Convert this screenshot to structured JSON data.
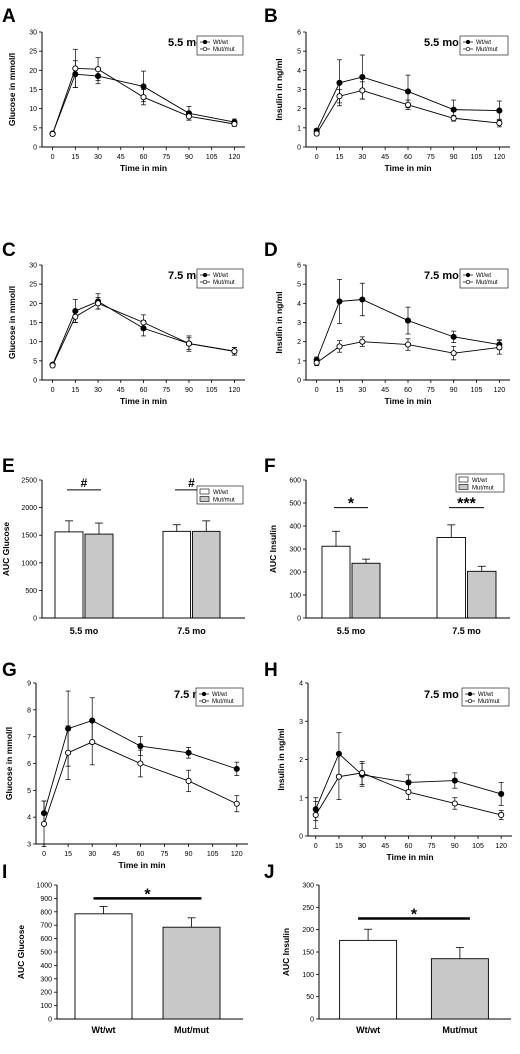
{
  "colors": {
    "wt_fill": "#ffffff",
    "mut_fill": "#c8c8c8",
    "ink": "#000000"
  },
  "charts": [
    {
      "id": "A",
      "letter": "A",
      "type": "line",
      "tag": "5.5 mo",
      "xlabel": "Time in min",
      "ylabel": "Glucose in mmol/l",
      "xlim": [
        -7,
        127
      ],
      "xticks": [
        0,
        15,
        30,
        45,
        60,
        75,
        90,
        105,
        120
      ],
      "ylim": [
        0,
        30
      ],
      "yticks": [
        0,
        5,
        10,
        15,
        20,
        25,
        30
      ],
      "legend": [
        "Wt/wt",
        "Mut/mut"
      ],
      "x": [
        0,
        15,
        30,
        60,
        90,
        120
      ],
      "series": [
        {
          "name": "Wt/wt",
          "marker": "filled",
          "values": [
            3.5,
            19.0,
            18.5,
            15.8,
            8.8,
            6.5
          ],
          "err": [
            0.4,
            3.5,
            2.0,
            4.0,
            1.8,
            0.8
          ]
        },
        {
          "name": "Mut/mut",
          "marker": "open",
          "values": [
            3.4,
            20.5,
            20.3,
            13.0,
            8.0,
            6.0
          ],
          "err": [
            0.4,
            5.0,
            3.0,
            2.0,
            1.0,
            0.6
          ]
        }
      ]
    },
    {
      "id": "B",
      "letter": "B",
      "type": "line",
      "tag": "5.5 mo",
      "xlabel": "Time in min",
      "ylabel": "Insulin in ng/ml",
      "xlim": [
        -7,
        127
      ],
      "xticks": [
        0,
        15,
        30,
        45,
        60,
        75,
        90,
        105,
        120
      ],
      "ylim": [
        0,
        6
      ],
      "yticks": [
        0,
        1,
        2,
        3,
        4,
        5,
        6
      ],
      "legend": [
        "Wt/wt",
        "Mut/mut"
      ],
      "x": [
        0,
        15,
        30,
        60,
        90,
        120
      ],
      "series": [
        {
          "name": "Wt/wt",
          "marker": "filled",
          "values": [
            0.85,
            3.35,
            3.65,
            2.9,
            1.95,
            1.9
          ],
          "err": [
            0.1,
            1.2,
            1.15,
            0.85,
            0.5,
            0.5
          ]
        },
        {
          "name": "Mut/mut",
          "marker": "open",
          "values": [
            0.7,
            2.65,
            2.95,
            2.2,
            1.5,
            1.25
          ],
          "err": [
            0.08,
            0.35,
            0.45,
            0.25,
            0.15,
            0.2
          ]
        }
      ]
    },
    {
      "id": "C",
      "letter": "C",
      "type": "line",
      "tag": "7.5 mo",
      "xlabel": "Time in min",
      "ylabel": "Glucose in mmol/l",
      "xlim": [
        -7,
        127
      ],
      "xticks": [
        0,
        15,
        30,
        45,
        60,
        75,
        90,
        105,
        120
      ],
      "ylim": [
        0,
        30
      ],
      "yticks": [
        0,
        5,
        10,
        15,
        20,
        25,
        30
      ],
      "legend": [
        "Wt/wt",
        "Mut/mut"
      ],
      "x": [
        0,
        15,
        30,
        60,
        90,
        120
      ],
      "series": [
        {
          "name": "Wt/wt",
          "marker": "filled",
          "values": [
            4.0,
            18.0,
            20.5,
            13.5,
            9.5,
            7.5
          ],
          "err": [
            0.4,
            3.0,
            2.0,
            2.0,
            1.5,
            1.0
          ]
        },
        {
          "name": "Mut/mut",
          "marker": "open",
          "values": [
            3.8,
            16.5,
            20.0,
            15.0,
            9.5,
            7.5
          ],
          "err": [
            0.4,
            1.5,
            1.5,
            2.0,
            2.0,
            1.0
          ]
        }
      ]
    },
    {
      "id": "D",
      "letter": "D",
      "type": "line",
      "tag": "7.5 mo",
      "xlabel": "Time in min",
      "ylabel": "Insulin in ng/ml",
      "xlim": [
        -7,
        127
      ],
      "xticks": [
        0,
        15,
        30,
        45,
        60,
        75,
        90,
        105,
        120
      ],
      "ylim": [
        0,
        6
      ],
      "yticks": [
        0,
        1,
        2,
        3,
        4,
        5,
        6
      ],
      "legend": [
        "Wt/wt",
        "Mut/mut"
      ],
      "x": [
        0,
        15,
        30,
        60,
        90,
        120
      ],
      "series": [
        {
          "name": "Wt/wt",
          "marker": "filled",
          "values": [
            1.05,
            4.1,
            4.2,
            3.1,
            2.25,
            1.85
          ],
          "err": [
            0.15,
            1.15,
            0.85,
            0.7,
            0.3,
            0.25
          ]
        },
        {
          "name": "Mut/mut",
          "marker": "open",
          "values": [
            0.9,
            1.75,
            2.0,
            1.85,
            1.4,
            1.7
          ],
          "err": [
            0.15,
            0.3,
            0.25,
            0.3,
            0.35,
            0.35
          ]
        }
      ]
    },
    {
      "id": "E",
      "letter": "E",
      "type": "bar",
      "tag": "",
      "xlabel": "",
      "ylabel": "AUC Glucose",
      "ylim": [
        0,
        2500
      ],
      "yticks": [
        0,
        500,
        1000,
        1500,
        2000,
        2500
      ],
      "legend": [
        "Wt/wt",
        "Mut/mut"
      ],
      "categories": [
        "5.5 mo",
        "7.5 mo"
      ],
      "series": [
        {
          "name": "Wt/wt",
          "fill": "#ffffff",
          "values": [
            1560,
            1570
          ],
          "err": [
            200,
            120
          ]
        },
        {
          "name": "Mut/mut",
          "fill": "#c8c8c8",
          "values": [
            1520,
            1570
          ],
          "err": [
            200,
            190
          ]
        }
      ],
      "sig": [
        {
          "group": 0,
          "label": "#",
          "y": 2320
        },
        {
          "group": 1,
          "label": "#",
          "y": 2320
        }
      ]
    },
    {
      "id": "F",
      "letter": "F",
      "type": "bar",
      "tag": "",
      "xlabel": "",
      "ylabel": "AUC Insulin",
      "ylim": [
        0,
        600
      ],
      "yticks": [
        0,
        100,
        200,
        300,
        400,
        500,
        600
      ],
      "legend": [
        "Wt/wt",
        "Mut/mut"
      ],
      "categories": [
        "5.5 mo",
        "7.5 mo"
      ],
      "series": [
        {
          "name": "Wt/wt",
          "fill": "#ffffff",
          "values": [
            312,
            350
          ],
          "err": [
            65,
            55
          ]
        },
        {
          "name": "Mut/mut",
          "fill": "#c8c8c8",
          "values": [
            238,
            203
          ],
          "err": [
            18,
            22
          ]
        }
      ],
      "sig": [
        {
          "group": 0,
          "label": "*",
          "y": 480
        },
        {
          "group": 1,
          "label": "***",
          "y": 480
        }
      ]
    },
    {
      "id": "G",
      "letter": "G",
      "type": "line",
      "tag": "7.5 mo",
      "xlabel": "Time in min",
      "ylabel": "Glucose in mmol/l",
      "xlim": [
        -5,
        127
      ],
      "xticks": [
        0,
        15,
        30,
        45,
        60,
        75,
        90,
        105,
        120
      ],
      "ylim": [
        3,
        9
      ],
      "yticks": [
        3,
        4,
        5,
        6,
        7,
        8,
        9
      ],
      "legend": [
        "Wt/wt",
        "Mut/mut"
      ],
      "x": [
        0,
        15,
        30,
        60,
        90,
        120
      ],
      "series": [
        {
          "name": "Wt/wt",
          "marker": "filled",
          "values": [
            4.15,
            7.3,
            7.6,
            6.65,
            6.4,
            5.8
          ],
          "err": [
            0.45,
            1.4,
            0.85,
            0.35,
            0.2,
            0.25
          ]
        },
        {
          "name": "Mut/mut",
          "marker": "open",
          "values": [
            3.75,
            6.4,
            6.8,
            6.0,
            5.35,
            4.5
          ],
          "err": [
            0.85,
            1.0,
            0.85,
            0.5,
            0.4,
            0.3
          ]
        }
      ]
    },
    {
      "id": "H",
      "letter": "H",
      "type": "line",
      "tag": "7.5 mo",
      "xlabel": "Time in min",
      "ylabel": "Insulin in ng/ml",
      "xlim": [
        -5,
        127
      ],
      "xticks": [
        0,
        15,
        30,
        45,
        60,
        75,
        90,
        105,
        120
      ],
      "ylim": [
        0,
        4
      ],
      "yticks": [
        0,
        1,
        2,
        3,
        4
      ],
      "legend": [
        "Wt/wt",
        "Mut/mut"
      ],
      "x": [
        0,
        15,
        30,
        60,
        90,
        120
      ],
      "series": [
        {
          "name": "Wt/wt",
          "marker": "filled",
          "values": [
            0.7,
            2.15,
            1.6,
            1.4,
            1.45,
            1.1
          ],
          "err": [
            0.3,
            0.55,
            0.3,
            0.2,
            0.2,
            0.3
          ]
        },
        {
          "name": "Mut/mut",
          "marker": "open",
          "values": [
            0.55,
            1.55,
            1.65,
            1.15,
            0.85,
            0.55
          ],
          "err": [
            0.35,
            0.6,
            0.3,
            0.2,
            0.15,
            0.12
          ]
        }
      ]
    },
    {
      "id": "I",
      "letter": "I",
      "type": "bar",
      "tag": "",
      "xlabel": "",
      "ylabel": "AUC Glucose",
      "ylim": [
        0,
        1000
      ],
      "yticks": [
        0,
        100,
        200,
        300,
        400,
        500,
        600,
        700,
        800,
        900,
        1000
      ],
      "legend": [],
      "categories": [
        "Wt/wt",
        "Mut/mut"
      ],
      "series": [
        {
          "name": "Wt/wt",
          "fill": "#ffffff",
          "values": [
            785
          ],
          "err": [
            55
          ]
        },
        {
          "name": "Mut/mut",
          "fill": "#c8c8c8",
          "values": [
            685
          ],
          "err": [
            70
          ]
        }
      ],
      "sig": [
        {
          "group": -1,
          "label": "*",
          "y": 900
        }
      ]
    },
    {
      "id": "J",
      "letter": "J",
      "type": "bar",
      "tag": "",
      "xlabel": "",
      "ylabel": "AUC Insulin",
      "ylim": [
        0,
        300
      ],
      "yticks": [
        0,
        50,
        100,
        150,
        200,
        250,
        300
      ],
      "legend": [],
      "categories": [
        "Wt/wt",
        "Mut/mut"
      ],
      "series": [
        {
          "name": "Wt/wt",
          "fill": "#ffffff",
          "values": [
            176
          ],
          "err": [
            25
          ]
        },
        {
          "name": "Mut/mut",
          "fill": "#c8c8c8",
          "values": [
            135
          ],
          "err": [
            25
          ]
        }
      ],
      "sig": [
        {
          "group": -1,
          "label": "*",
          "y": 225
        }
      ]
    }
  ]
}
